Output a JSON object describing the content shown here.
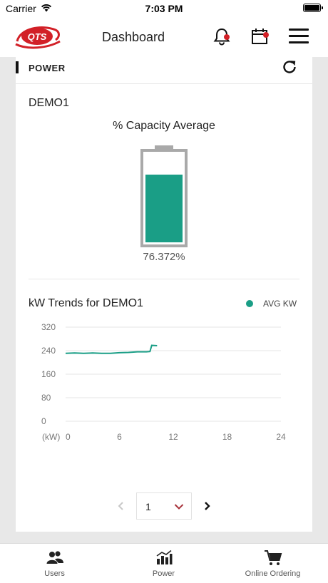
{
  "status_bar": {
    "carrier": "Carrier",
    "time": "7:03 PM",
    "wifi_icon": "wifi-icon",
    "battery_icon": "battery-icon"
  },
  "nav": {
    "title": "Dashboard",
    "logo_text": "QTS",
    "icons": [
      "bell-icon",
      "calendar-icon",
      "hamburger-menu-icon"
    ],
    "accent_color": "#d22027"
  },
  "power": {
    "section_title": "POWER",
    "site_name": "DEMO1",
    "capacity_title": "% Capacity Average",
    "capacity_percent": 76.372,
    "capacity_label": "76.372%",
    "fill_color": "#1a9e86"
  },
  "trend": {
    "title": "kW Trends for DEMO1",
    "legend": "AVG KW",
    "chart_data": {
      "type": "line",
      "title": "kW Trends for DEMO1",
      "ylabel": "(kW)",
      "xlabel": "",
      "xlim": [
        0,
        24
      ],
      "ylim": [
        0,
        320
      ],
      "x_ticks": [
        0,
        6,
        12,
        18,
        24
      ],
      "y_ticks": [
        0,
        80,
        160,
        240,
        320
      ],
      "grid": true,
      "legend_position": "top-right",
      "series": [
        {
          "name": "AVG KW",
          "color": "#1a9e86",
          "x": [
            0,
            1,
            2,
            3,
            4,
            5,
            6,
            7,
            8,
            9,
            9.4,
            9.6,
            10.2
          ],
          "y": [
            231,
            232,
            231,
            232,
            231,
            231,
            233,
            234,
            236,
            236,
            237,
            258,
            257
          ]
        }
      ]
    }
  },
  "pager": {
    "selected": "1",
    "prev_icon": "chevron-left-icon",
    "next_icon": "chevron-right-icon"
  },
  "tabs": [
    {
      "label": "Users",
      "icon": "users-icon"
    },
    {
      "label": "Power",
      "icon": "bar-chart-icon"
    },
    {
      "label": "Online Ordering",
      "icon": "cart-icon"
    }
  ]
}
